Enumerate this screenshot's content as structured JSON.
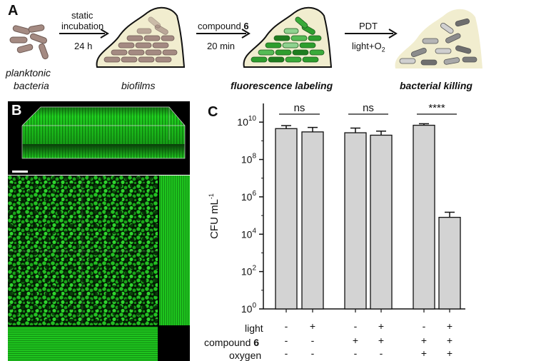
{
  "panel_a": {
    "letter": "A",
    "stages": [
      {
        "label": "planktonic\nbacteria",
        "l1": "planktonic",
        "l2": "bacteria"
      },
      {
        "label": "biofilms"
      },
      {
        "label": "fluorescence labeling"
      },
      {
        "label": "bacterial killing"
      }
    ],
    "arrows": [
      {
        "top1": "static",
        "top2": "incubation",
        "bottom": "24 h"
      },
      {
        "top_prefix": "compound ",
        "top_bold": "6",
        "bottom": "20 min"
      },
      {
        "top": "PDT",
        "bottom_prefix": "light+O",
        "bottom_sub": "2"
      }
    ],
    "colors": {
      "brown": "#a48a82",
      "green": "#2e9e2e",
      "gray": "#8c8c8c",
      "cream": "#f1edcf"
    }
  },
  "panel_b": {
    "letter": "B",
    "colors": {
      "green": "#1fd21f",
      "dark": "#021a02"
    }
  },
  "panel_c": {
    "letter": "C",
    "ylabel_prefix": "CFU mL",
    "ylabel_sup": "-1",
    "row_labels": {
      "light": "light",
      "compound_prefix": "compound ",
      "compound_bold": "6",
      "oxygen": "oxygen"
    }
  },
  "chart_data": {
    "type": "bar",
    "title": "",
    "ylabel": "CFU mL-1",
    "yscale": "log",
    "ylim": [
      1,
      100000000000
    ],
    "yticks": [
      {
        "base": "10",
        "exp": "0",
        "value": 1
      },
      {
        "base": "10",
        "exp": "2",
        "value": 100
      },
      {
        "base": "10",
        "exp": "4",
        "value": 10000
      },
      {
        "base": "10",
        "exp": "6",
        "value": 1000000
      },
      {
        "base": "10",
        "exp": "8",
        "value": 100000000
      },
      {
        "base": "10",
        "exp": "10",
        "value": 10000000000
      }
    ],
    "bar_color": "#d3d3d3",
    "bars": [
      {
        "light": "-",
        "compound6": "-",
        "oxygen": "-",
        "value": 4500000000,
        "error_upper": 6500000000
      },
      {
        "light": "+",
        "compound6": "-",
        "oxygen": "-",
        "value": 3000000000,
        "error_upper": 5200000000
      },
      {
        "light": "-",
        "compound6": "+",
        "oxygen": "-",
        "value": 2700000000,
        "error_upper": 4800000000
      },
      {
        "light": "+",
        "compound6": "+",
        "oxygen": "-",
        "value": 2000000000,
        "error_upper": 3300000000
      },
      {
        "light": "-",
        "compound6": "+",
        "oxygen": "+",
        "value": 6800000000,
        "error_upper": 8200000000
      },
      {
        "light": "+",
        "compound6": "+",
        "oxygen": "+",
        "value": 80000,
        "error_upper": 150000
      }
    ],
    "significance": [
      {
        "between": [
          0,
          1
        ],
        "label": "ns"
      },
      {
        "between": [
          2,
          3
        ],
        "label": "ns"
      },
      {
        "between": [
          4,
          5
        ],
        "label": "****"
      }
    ],
    "grid": false,
    "legend": "none"
  }
}
